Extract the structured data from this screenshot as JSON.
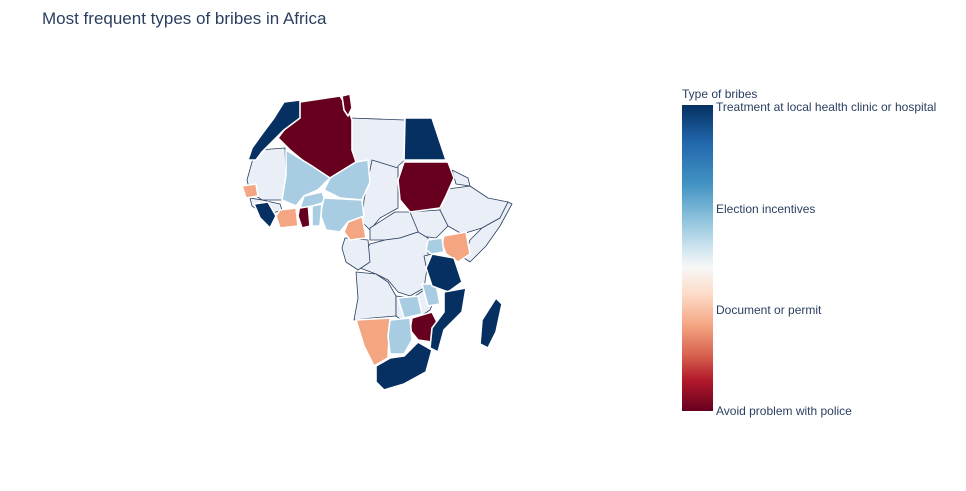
{
  "title": "Most frequent types of bribes in Africa",
  "colors": {
    "avoid_police": "#67001f",
    "document_permit": "#f4a582",
    "no_data": "#e9eef7",
    "election": "#a8cde3",
    "treatment": "#053061",
    "border": "#2a3f5f"
  },
  "colorbar": {
    "title": "Type of bribes",
    "ticks": [
      "Treatment at local health clinic or hospital",
      "Election incentives",
      "Document or permit",
      "Avoid problem with police"
    ]
  }
}
